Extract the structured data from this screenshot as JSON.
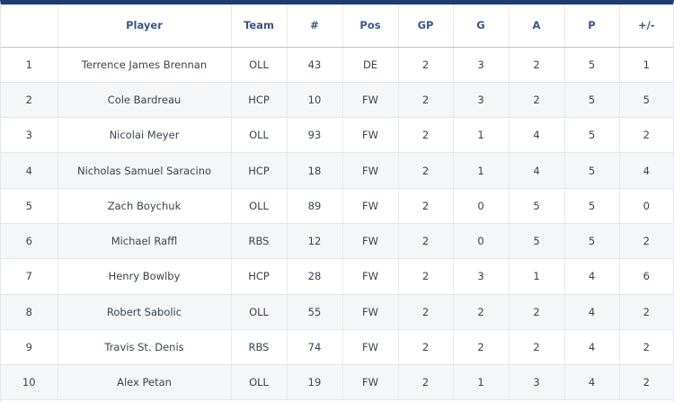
{
  "columns": [
    "",
    "Player",
    "Team",
    "#",
    "Pos",
    "GP",
    "G",
    "A",
    "P",
    "+/-"
  ],
  "rows": [
    {
      "rank": "1",
      "player": "Terrence James Brennan",
      "team": "OLL",
      "number": "43",
      "pos": "DE",
      "gp": "2",
      "g": "3",
      "a": "2",
      "p": "5",
      "pm": "1"
    },
    {
      "rank": "2",
      "player": "Cole Bardreau",
      "team": "HCP",
      "number": "10",
      "pos": "FW",
      "gp": "2",
      "g": "3",
      "a": "2",
      "p": "5",
      "pm": "5"
    },
    {
      "rank": "3",
      "player": "Nicolai Meyer",
      "team": "OLL",
      "number": "93",
      "pos": "FW",
      "gp": "2",
      "g": "1",
      "a": "4",
      "p": "5",
      "pm": "2"
    },
    {
      "rank": "4",
      "player": "Nicholas Samuel Saracino",
      "team": "HCP",
      "number": "18",
      "pos": "FW",
      "gp": "2",
      "g": "1",
      "a": "4",
      "p": "5",
      "pm": "4"
    },
    {
      "rank": "5",
      "player": "Zach Boychuk",
      "team": "OLL",
      "number": "89",
      "pos": "FW",
      "gp": "2",
      "g": "0",
      "a": "5",
      "p": "5",
      "pm": "0"
    },
    {
      "rank": "6",
      "player": "Michael Raffl",
      "team": "RBS",
      "number": "12",
      "pos": "FW",
      "gp": "2",
      "g": "0",
      "a": "5",
      "p": "5",
      "pm": "2"
    },
    {
      "rank": "7",
      "player": "Henry Bowlby",
      "team": "HCP",
      "number": "28",
      "pos": "FW",
      "gp": "2",
      "g": "3",
      "a": "1",
      "p": "4",
      "pm": "6"
    },
    {
      "rank": "8",
      "player": "Robert Sabolic",
      "team": "OLL",
      "number": "55",
      "pos": "FW",
      "gp": "2",
      "g": "2",
      "a": "2",
      "p": "4",
      "pm": "2"
    },
    {
      "rank": "9",
      "player": "Travis St. Denis",
      "team": "RBS",
      "number": "74",
      "pos": "FW",
      "gp": "2",
      "g": "2",
      "a": "2",
      "p": "4",
      "pm": "2"
    },
    {
      "rank": "10",
      "player": "Alex Petan",
      "team": "OLL",
      "number": "19",
      "pos": "FW",
      "gp": "2",
      "g": "1",
      "a": "3",
      "p": "4",
      "pm": "2"
    }
  ],
  "colors": {
    "accent": "#1c3d6e",
    "header_text": "#3b5588",
    "row_alt": "#f4f6f8"
  }
}
